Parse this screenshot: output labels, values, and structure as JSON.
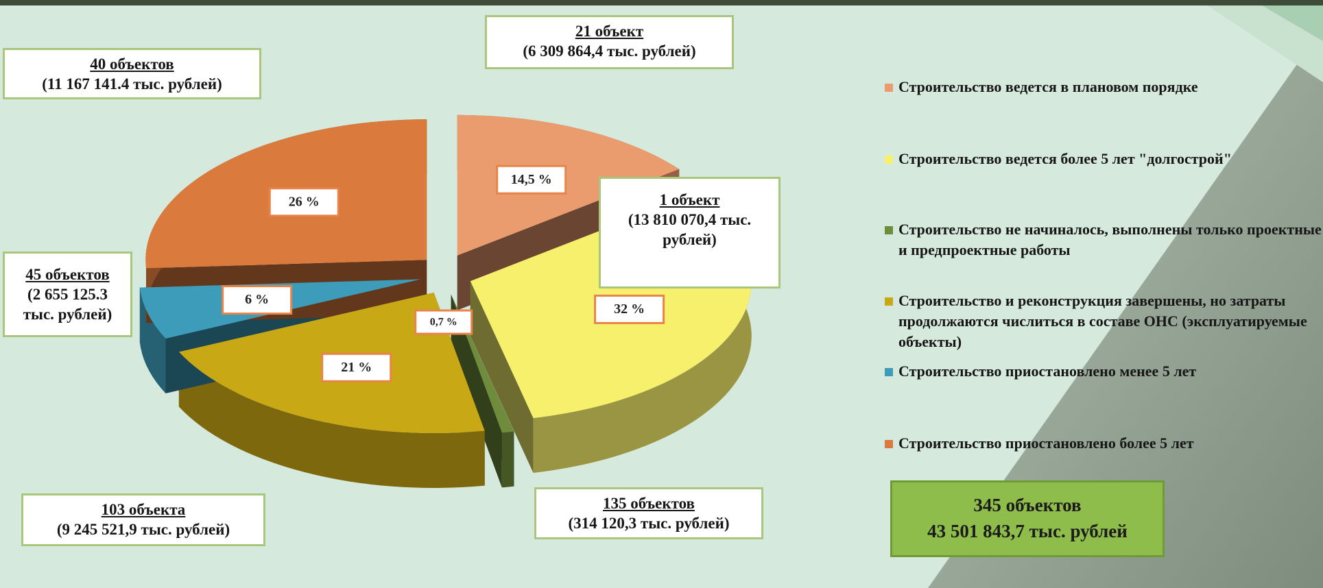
{
  "chart_data": {
    "type": "pie",
    "categories": [
      "Строительство ведется в плановом порядке",
      "Строительство ведется более 5 лет \"долгострой\"",
      "Строительство не начиналось, выполнены только проектные и предпроектные работы",
      "Строительство и реконструкция завершены, но затраты продолжаются числиться в составе ОНС (эксплуатируемые объекты)",
      "Строительство приостановлено менее 5 лет",
      "Строительство приостановлено более  5 лет"
    ],
    "values": [
      14.5,
      32,
      0.7,
      21,
      6,
      26
    ],
    "value_labels": [
      "14,5 %",
      "32 %",
      "0,7 %",
      "21 %",
      "6 %",
      "26 %"
    ],
    "colors": [
      "#eb9c6e",
      "#f6f06c",
      "#6e8c3c",
      "#c9a816",
      "#3d9cb9",
      "#da7a3c"
    ],
    "callouts": [
      {
        "count": "21 объект",
        "sum": "(6 309 864,4  тыс. рублей)"
      },
      {
        "count": "1 объект",
        "sum": "(13 810 070,4 тыс. рублей)"
      },
      {
        "count": "135 объектов",
        "sum": "(314 120,3 тыс. рублей)"
      },
      {
        "count": "103 объекта",
        "sum": "(9 245 521,9 тыс. рублей)"
      },
      {
        "count": "45 объектов",
        "sum": "(2 655 125.3 тыс. рублей)"
      },
      {
        "count": "40 объектов",
        "sum": "(11 167 141.4 тыс. рублей)"
      }
    ],
    "total": {
      "count": "345 объектов",
      "sum": "43 501 843,7 тыс. рублей"
    }
  }
}
